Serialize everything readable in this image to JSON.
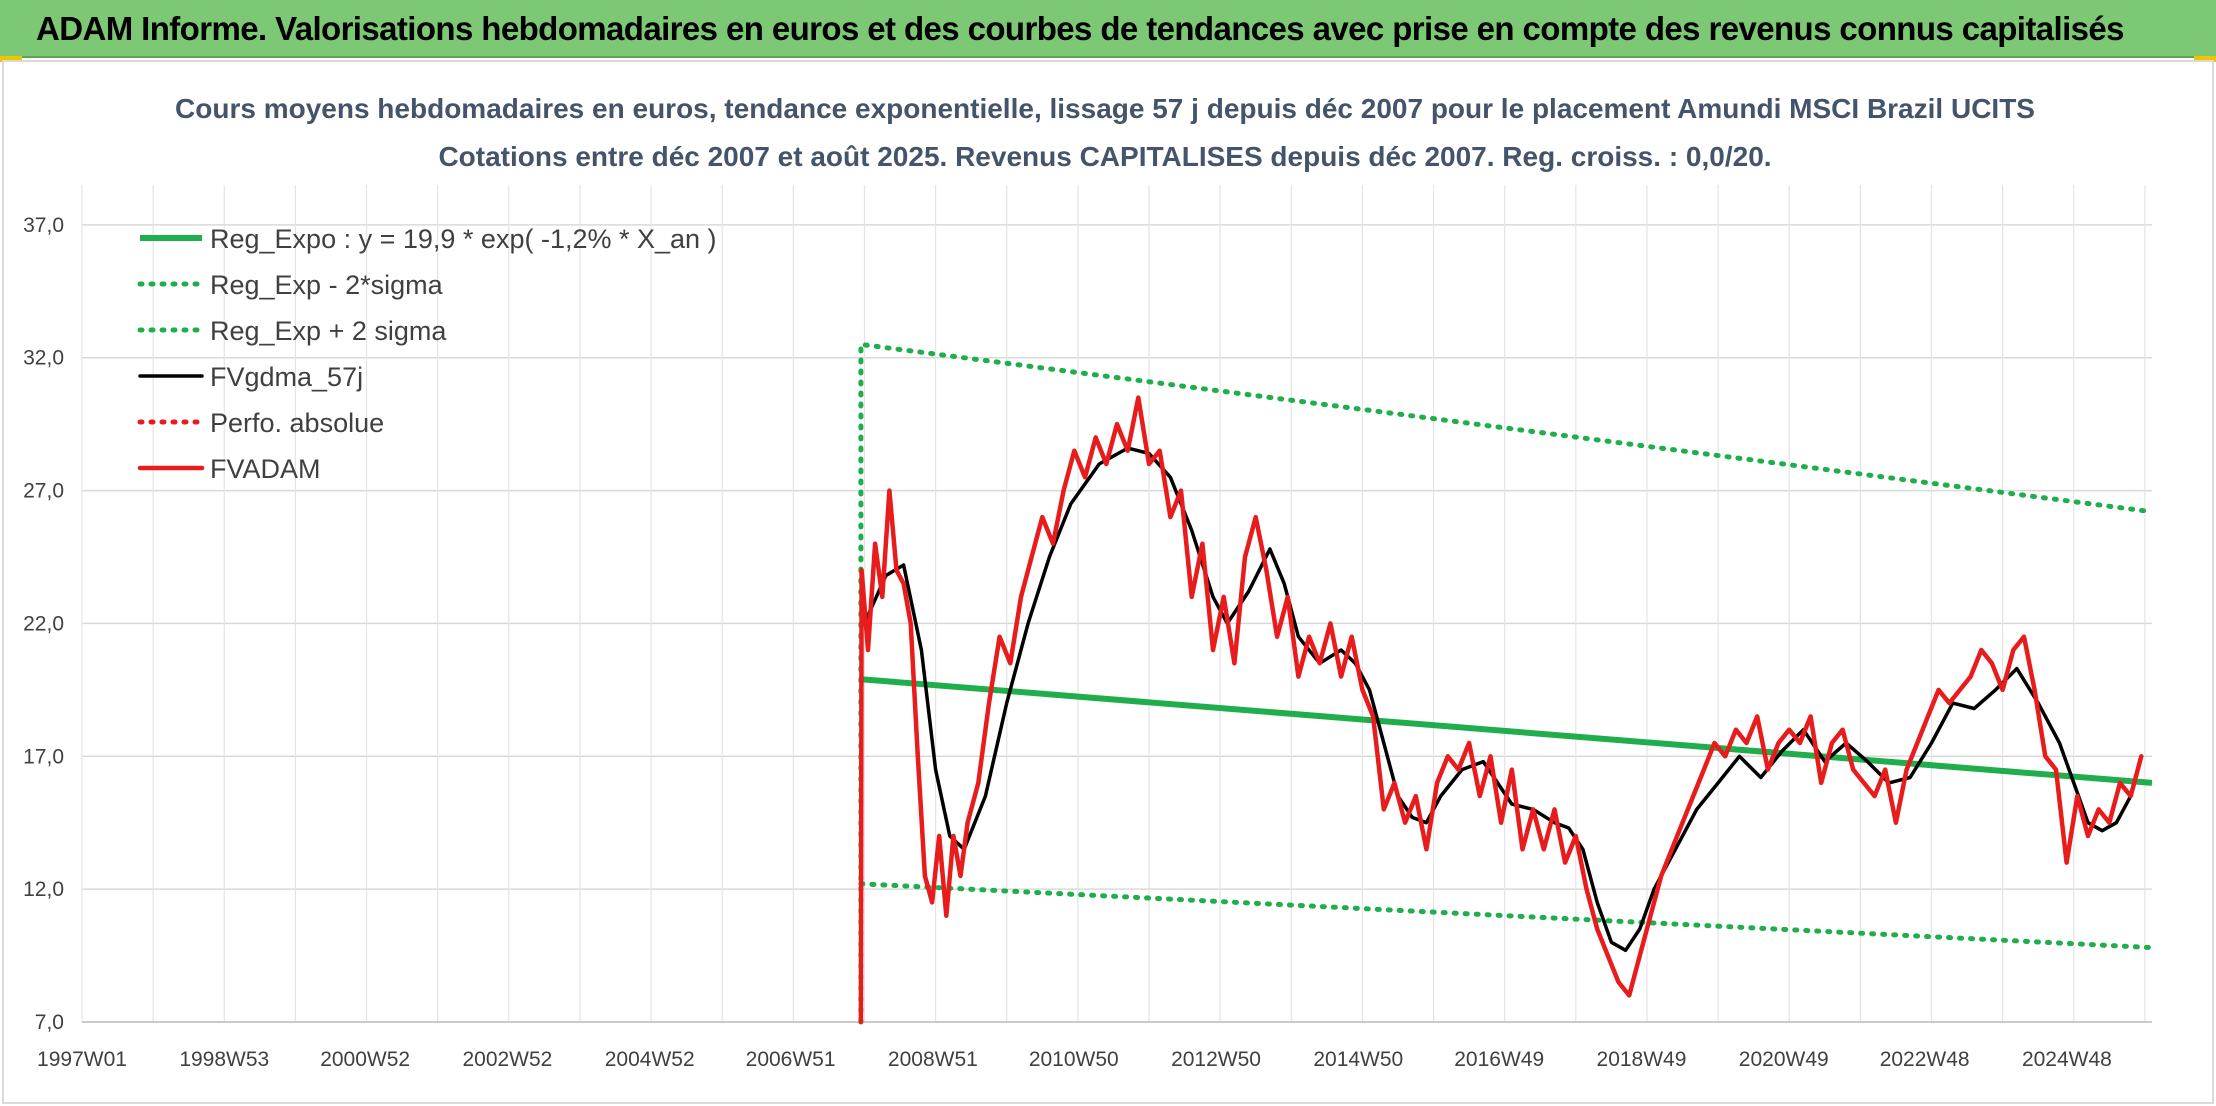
{
  "banner": {
    "title": "ADAM Informe. Valorisations hebdomadaires en euros et des courbes de tendances avec prise en compte des revenus connus capitalisés"
  },
  "chart_data": {
    "type": "line",
    "title": "Cours moyens hebdomadaires en euros, tendance exponentielle, lissage 57 j depuis déc 2007 pour le placement Amundi MSCI Brazil UCITS",
    "subtitle": "Cotations entre déc 2007 et août 2025. Revenus CAPITALISES depuis déc 2007. Reg. croiss. : 0,0/20.",
    "xlabel": "",
    "ylabel": "",
    "x_ticks": [
      "1997W01",
      "1998W53",
      "2000W52",
      "2002W52",
      "2004W52",
      "2006W51",
      "2008W51",
      "2010W50",
      "2012W50",
      "2014W50",
      "2016W49",
      "2018W49",
      "2020W49",
      "2022W48",
      "2024W48"
    ],
    "y_ticks": [
      "7,0",
      "12,0",
      "17,0",
      "22,0",
      "27,0",
      "32,0",
      "37,0"
    ],
    "xlim": [
      1997.0,
      2026.1
    ],
    "ylim": [
      7.0,
      38.5
    ],
    "grid": true,
    "legend_position": "top-left",
    "series": [
      {
        "name": "Reg_Expo : y = 19,9 * exp( -1,2% *  X_an )",
        "color": "#1fae4b",
        "style": "solid",
        "points": [
          [
            2007.95,
            19.9
          ],
          [
            2026.1,
            16.0
          ]
        ]
      },
      {
        "name": "Reg_Exp - 2*sigma",
        "color": "#1fae4b",
        "style": "dotted",
        "points": [
          [
            2007.95,
            12.2
          ],
          [
            2026.1,
            9.8
          ]
        ]
      },
      {
        "name": "Reg_Exp + 2 sigma",
        "color": "#1fae4b",
        "style": "dotted",
        "points": [
          [
            2007.95,
            7.0
          ],
          [
            2007.95,
            32.5
          ],
          [
            2026.1,
            26.2
          ]
        ]
      },
      {
        "name": "FVgdma_57j",
        "color": "#000000",
        "style": "solid",
        "points": [
          [
            2008.0,
            22.0
          ],
          [
            2008.3,
            23.8
          ],
          [
            2008.55,
            24.2
          ],
          [
            2008.8,
            21.0
          ],
          [
            2009.0,
            16.5
          ],
          [
            2009.2,
            14.0
          ],
          [
            2009.4,
            13.5
          ],
          [
            2009.7,
            15.5
          ],
          [
            2010.0,
            19.0
          ],
          [
            2010.3,
            22.0
          ],
          [
            2010.6,
            24.5
          ],
          [
            2010.9,
            26.5
          ],
          [
            2011.3,
            28.0
          ],
          [
            2011.7,
            28.6
          ],
          [
            2012.0,
            28.4
          ],
          [
            2012.3,
            27.5
          ],
          [
            2012.6,
            25.5
          ],
          [
            2012.9,
            23.0
          ],
          [
            2013.1,
            22.0
          ],
          [
            2013.4,
            23.2
          ],
          [
            2013.7,
            24.8
          ],
          [
            2013.9,
            23.5
          ],
          [
            2014.1,
            21.5
          ],
          [
            2014.4,
            20.5
          ],
          [
            2014.7,
            21.0
          ],
          [
            2014.9,
            20.5
          ],
          [
            2015.1,
            19.5
          ],
          [
            2015.3,
            17.5
          ],
          [
            2015.5,
            15.5
          ],
          [
            2015.7,
            14.7
          ],
          [
            2015.9,
            14.5
          ],
          [
            2016.1,
            15.5
          ],
          [
            2016.4,
            16.5
          ],
          [
            2016.7,
            16.8
          ],
          [
            2016.9,
            16.0
          ],
          [
            2017.1,
            15.2
          ],
          [
            2017.4,
            15.0
          ],
          [
            2017.7,
            14.5
          ],
          [
            2017.9,
            14.3
          ],
          [
            2018.1,
            13.5
          ],
          [
            2018.3,
            11.5
          ],
          [
            2018.5,
            10.0
          ],
          [
            2018.7,
            9.7
          ],
          [
            2018.9,
            10.5
          ],
          [
            2019.1,
            12.0
          ],
          [
            2019.4,
            13.5
          ],
          [
            2019.7,
            15.0
          ],
          [
            2020.0,
            16.0
          ],
          [
            2020.3,
            17.0
          ],
          [
            2020.6,
            16.2
          ],
          [
            2020.9,
            17.2
          ],
          [
            2021.2,
            18.0
          ],
          [
            2021.5,
            16.8
          ],
          [
            2021.8,
            17.5
          ],
          [
            2022.1,
            16.8
          ],
          [
            2022.4,
            16.0
          ],
          [
            2022.7,
            16.2
          ],
          [
            2023.0,
            17.5
          ],
          [
            2023.3,
            19.0
          ],
          [
            2023.6,
            18.8
          ],
          [
            2023.9,
            19.5
          ],
          [
            2024.2,
            20.3
          ],
          [
            2024.5,
            19.0
          ],
          [
            2024.8,
            17.5
          ],
          [
            2025.0,
            16.0
          ],
          [
            2025.2,
            14.5
          ],
          [
            2025.4,
            14.2
          ],
          [
            2025.6,
            14.5
          ],
          [
            2025.8,
            15.5
          ]
        ]
      },
      {
        "name": "Perfo. absolue",
        "color": "#e81c1c",
        "style": "dotted",
        "points": []
      },
      {
        "name": "FVADAM",
        "color": "#e81c1c",
        "style": "solid",
        "points": [
          [
            2007.95,
            7.0
          ],
          [
            2007.96,
            24.0
          ],
          [
            2008.05,
            21.0
          ],
          [
            2008.15,
            25.0
          ],
          [
            2008.25,
            23.0
          ],
          [
            2008.35,
            27.0
          ],
          [
            2008.45,
            24.0
          ],
          [
            2008.55,
            23.5
          ],
          [
            2008.65,
            22.0
          ],
          [
            2008.75,
            17.0
          ],
          [
            2008.85,
            12.5
          ],
          [
            2008.95,
            11.5
          ],
          [
            2009.05,
            14.0
          ],
          [
            2009.15,
            11.0
          ],
          [
            2009.25,
            14.0
          ],
          [
            2009.35,
            12.5
          ],
          [
            2009.45,
            14.5
          ],
          [
            2009.6,
            16.0
          ],
          [
            2009.75,
            19.0
          ],
          [
            2009.9,
            21.5
          ],
          [
            2010.05,
            20.5
          ],
          [
            2010.2,
            23.0
          ],
          [
            2010.35,
            24.5
          ],
          [
            2010.5,
            26.0
          ],
          [
            2010.65,
            25.0
          ],
          [
            2010.8,
            27.0
          ],
          [
            2010.95,
            28.5
          ],
          [
            2011.1,
            27.5
          ],
          [
            2011.25,
            29.0
          ],
          [
            2011.4,
            28.0
          ],
          [
            2011.55,
            29.5
          ],
          [
            2011.7,
            28.5
          ],
          [
            2011.85,
            30.5
          ],
          [
            2012.0,
            28.0
          ],
          [
            2012.15,
            28.5
          ],
          [
            2012.3,
            26.0
          ],
          [
            2012.45,
            27.0
          ],
          [
            2012.6,
            23.0
          ],
          [
            2012.75,
            25.0
          ],
          [
            2012.9,
            21.0
          ],
          [
            2013.05,
            23.0
          ],
          [
            2013.2,
            20.5
          ],
          [
            2013.35,
            24.5
          ],
          [
            2013.5,
            26.0
          ],
          [
            2013.65,
            24.0
          ],
          [
            2013.8,
            21.5
          ],
          [
            2013.95,
            23.0
          ],
          [
            2014.1,
            20.0
          ],
          [
            2014.25,
            21.5
          ],
          [
            2014.4,
            20.5
          ],
          [
            2014.55,
            22.0
          ],
          [
            2014.7,
            20.0
          ],
          [
            2014.85,
            21.5
          ],
          [
            2015.0,
            19.5
          ],
          [
            2015.15,
            18.5
          ],
          [
            2015.3,
            15.0
          ],
          [
            2015.45,
            16.0
          ],
          [
            2015.6,
            14.5
          ],
          [
            2015.75,
            15.5
          ],
          [
            2015.9,
            13.5
          ],
          [
            2016.05,
            16.0
          ],
          [
            2016.2,
            17.0
          ],
          [
            2016.35,
            16.5
          ],
          [
            2016.5,
            17.5
          ],
          [
            2016.65,
            15.5
          ],
          [
            2016.8,
            17.0
          ],
          [
            2016.95,
            14.5
          ],
          [
            2017.1,
            16.5
          ],
          [
            2017.25,
            13.5
          ],
          [
            2017.4,
            15.0
          ],
          [
            2017.55,
            13.5
          ],
          [
            2017.7,
            15.0
          ],
          [
            2017.85,
            13.0
          ],
          [
            2018.0,
            14.0
          ],
          [
            2018.15,
            12.0
          ],
          [
            2018.3,
            10.5
          ],
          [
            2018.45,
            9.5
          ],
          [
            2018.6,
            8.5
          ],
          [
            2018.75,
            8.0
          ],
          [
            2018.9,
            9.5
          ],
          [
            2019.05,
            11.0
          ],
          [
            2019.2,
            12.5
          ],
          [
            2019.35,
            13.5
          ],
          [
            2019.5,
            14.5
          ],
          [
            2019.65,
            15.5
          ],
          [
            2019.8,
            16.5
          ],
          [
            2019.95,
            17.5
          ],
          [
            2020.1,
            17.0
          ],
          [
            2020.25,
            18.0
          ],
          [
            2020.4,
            17.5
          ],
          [
            2020.55,
            18.5
          ],
          [
            2020.7,
            16.5
          ],
          [
            2020.85,
            17.5
          ],
          [
            2021.0,
            18.0
          ],
          [
            2021.15,
            17.5
          ],
          [
            2021.3,
            18.5
          ],
          [
            2021.45,
            16.0
          ],
          [
            2021.6,
            17.5
          ],
          [
            2021.75,
            18.0
          ],
          [
            2021.9,
            16.5
          ],
          [
            2022.05,
            16.0
          ],
          [
            2022.2,
            15.5
          ],
          [
            2022.35,
            16.5
          ],
          [
            2022.5,
            14.5
          ],
          [
            2022.65,
            16.5
          ],
          [
            2022.8,
            17.5
          ],
          [
            2022.95,
            18.5
          ],
          [
            2023.1,
            19.5
          ],
          [
            2023.25,
            19.0
          ],
          [
            2023.4,
            19.5
          ],
          [
            2023.55,
            20.0
          ],
          [
            2023.7,
            21.0
          ],
          [
            2023.85,
            20.5
          ],
          [
            2024.0,
            19.5
          ],
          [
            2024.15,
            21.0
          ],
          [
            2024.3,
            21.5
          ],
          [
            2024.45,
            19.5
          ],
          [
            2024.6,
            17.0
          ],
          [
            2024.75,
            16.5
          ],
          [
            2024.9,
            13.0
          ],
          [
            2025.05,
            15.5
          ],
          [
            2025.2,
            14.0
          ],
          [
            2025.35,
            15.0
          ],
          [
            2025.5,
            14.5
          ],
          [
            2025.65,
            16.0
          ],
          [
            2025.8,
            15.5
          ],
          [
            2025.95,
            17.0
          ]
        ]
      }
    ]
  }
}
